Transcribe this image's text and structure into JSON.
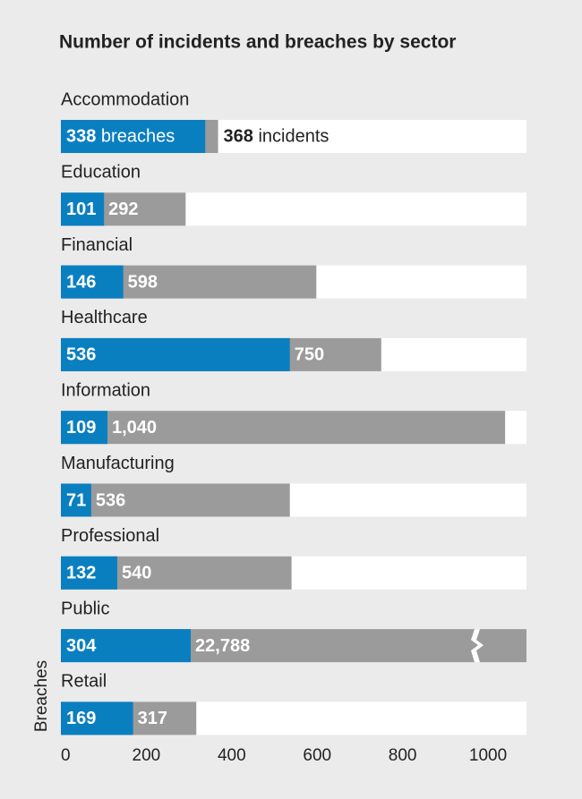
{
  "chart_data": {
    "type": "bar",
    "orientation": "horizontal",
    "title": "Number of incidents and breaches by sector",
    "ylabel": "Breaches",
    "categories": [
      "Accommodation",
      "Education",
      "Financial",
      "Healthcare",
      "Information",
      "Manufacturing",
      "Professional",
      "Public",
      "Retail"
    ],
    "series": [
      {
        "name": "incidents",
        "color": "#9b9b9b",
        "values": [
          368,
          292,
          598,
          750,
          1040,
          536,
          540,
          22788,
          317
        ],
        "value_labels": [
          "368 incidents",
          "292",
          "598",
          "750",
          "1,040",
          "536",
          "540",
          "22,788",
          "317"
        ]
      },
      {
        "name": "breaches",
        "color": "#0a7fc0",
        "values": [
          338,
          101,
          146,
          536,
          109,
          71,
          132,
          304,
          169
        ],
        "value_labels": [
          "338 breaches",
          "101",
          "146",
          "536",
          "109",
          "71",
          "132",
          "304",
          "169"
        ]
      }
    ],
    "xlim": [
      0,
      1090
    ],
    "xticks": [
      0,
      200,
      400,
      600,
      800,
      1000
    ]
  }
}
